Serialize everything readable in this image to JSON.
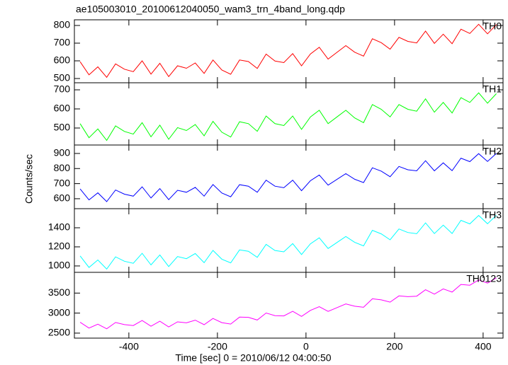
{
  "chart_data": [
    {
      "type": "line",
      "title": "ae105003010_20100612040050_wam3_trn_4band_long.qdp",
      "x": [
        -510,
        -490,
        -470,
        -450,
        -430,
        -410,
        -390,
        -370,
        -350,
        -330,
        -310,
        -290,
        -270,
        -250,
        -230,
        -210,
        -190,
        -170,
        -150,
        -130,
        -110,
        -90,
        -70,
        -50,
        -30,
        -10,
        10,
        30,
        50,
        70,
        90,
        110,
        130,
        150,
        170,
        190,
        210,
        230,
        250,
        270,
        290,
        310,
        330,
        350,
        370,
        390,
        410,
        430
      ],
      "series": [
        {
          "name": "TH0",
          "color": "#ff0000",
          "values": [
            595,
            521,
            566,
            507,
            583,
            553,
            539,
            600,
            525,
            586,
            511,
            572,
            558,
            588,
            529,
            605,
            548,
            524,
            605,
            596,
            557,
            638,
            599,
            590,
            641,
            572,
            639,
            677,
            610,
            648,
            686,
            649,
            627,
            725,
            703,
            666,
            733,
            710,
            701,
            768,
            699,
            751,
            697,
            779,
            755,
            807,
            753,
            805
          ]
        }
      ],
      "xlim": [
        -523,
        445
      ],
      "xticks": [
        -400,
        -200,
        0,
        200,
        400
      ],
      "ylim": [
        476,
        832
      ],
      "yticks": [
        500,
        600,
        700,
        800
      ]
    },
    {
      "type": "line",
      "x": [
        -510,
        -490,
        -470,
        -450,
        -430,
        -410,
        -390,
        -370,
        -350,
        -330,
        -310,
        -290,
        -270,
        -250,
        -230,
        -210,
        -190,
        -170,
        -150,
        -130,
        -110,
        -90,
        -70,
        -50,
        -30,
        -10,
        10,
        30,
        50,
        70,
        90,
        110,
        130,
        150,
        170,
        190,
        210,
        230,
        250,
        270,
        290,
        310,
        330,
        350,
        370,
        390,
        410,
        430
      ],
      "series": [
        {
          "name": "TH1",
          "color": "#00ff00",
          "values": [
            523,
            449,
            495,
            435,
            511,
            482,
            468,
            528,
            454,
            515,
            441,
            502,
            487,
            518,
            459,
            535,
            478,
            453,
            533,
            523,
            483,
            563,
            523,
            513,
            563,
            493,
            558,
            593,
            523,
            558,
            593,
            553,
            528,
            623,
            598,
            558,
            623,
            598,
            588,
            653,
            583,
            634,
            579,
            659,
            634,
            684,
            630,
            680
          ]
        }
      ],
      "xlim": [
        -523,
        445
      ],
      "xticks": [
        -400,
        -200,
        0,
        200,
        400
      ],
      "ylim": [
        411,
        737
      ],
      "yticks": [
        500,
        600,
        700
      ]
    },
    {
      "type": "line",
      "ylabel": "Counts/sec",
      "x": [
        -510,
        -490,
        -470,
        -450,
        -430,
        -410,
        -390,
        -370,
        -350,
        -330,
        -310,
        -290,
        -270,
        -250,
        -230,
        -210,
        -190,
        -170,
        -150,
        -130,
        -110,
        -90,
        -70,
        -50,
        -30,
        -10,
        10,
        30,
        50,
        70,
        90,
        110,
        130,
        150,
        170,
        190,
        210,
        230,
        250,
        270,
        290,
        310,
        330,
        350,
        370,
        390,
        410,
        430
      ],
      "series": [
        {
          "name": "TH2",
          "color": "#0000ff",
          "values": [
            665,
            592,
            639,
            581,
            658,
            630,
            617,
            679,
            605,
            667,
            594,
            656,
            643,
            675,
            617,
            694,
            638,
            613,
            693,
            683,
            643,
            723,
            683,
            673,
            723,
            653,
            719,
            757,
            690,
            728,
            766,
            729,
            707,
            805,
            783,
            746,
            814,
            792,
            785,
            852,
            785,
            838,
            786,
            869,
            846,
            899,
            847,
            900
          ]
        }
      ],
      "xlim": [
        -523,
        445
      ],
      "xticks": [
        -400,
        -200,
        0,
        200,
        400
      ],
      "ylim": [
        534,
        956
      ],
      "yticks": [
        600,
        700,
        800,
        900
      ]
    },
    {
      "type": "line",
      "x": [
        -510,
        -490,
        -470,
        -450,
        -430,
        -410,
        -390,
        -370,
        -350,
        -330,
        -310,
        -290,
        -270,
        -250,
        -230,
        -210,
        -190,
        -170,
        -150,
        -130,
        -110,
        -90,
        -70,
        -50,
        -30,
        -10,
        10,
        30,
        50,
        70,
        90,
        110,
        130,
        150,
        170,
        190,
        210,
        230,
        250,
        270,
        290,
        310,
        330,
        350,
        370,
        390,
        410,
        430
      ],
      "series": [
        {
          "name": "TH3",
          "color": "#00ffff",
          "values": [
            1105,
            984,
            1063,
            967,
            1095,
            1049,
            1028,
            1132,
            1011,
            1115,
            994,
            1098,
            1076,
            1130,
            1034,
            1163,
            1071,
            1032,
            1168,
            1154,
            1090,
            1226,
            1162,
            1148,
            1234,
            1120,
            1232,
            1295,
            1183,
            1246,
            1309,
            1247,
            1210,
            1373,
            1336,
            1274,
            1387,
            1350,
            1338,
            1451,
            1339,
            1427,
            1340,
            1478,
            1441,
            1529,
            1442,
            1530
          ]
        }
      ],
      "xlim": [
        -523,
        445
      ],
      "xticks": [
        -400,
        -200,
        0,
        200,
        400
      ],
      "ylim": [
        933,
        1600
      ],
      "yticks": [
        1000,
        1200,
        1400
      ]
    },
    {
      "type": "line",
      "xlabel": "Time [sec] 0 = 2010/06/12 04:00:50",
      "x": [
        -510,
        -490,
        -470,
        -450,
        -430,
        -410,
        -390,
        -370,
        -350,
        -330,
        -310,
        -290,
        -270,
        -250,
        -230,
        -210,
        -190,
        -170,
        -150,
        -130,
        -110,
        -90,
        -70,
        -50,
        -30,
        -10,
        10,
        30,
        50,
        70,
        90,
        110,
        130,
        150,
        170,
        190,
        210,
        230,
        250,
        270,
        290,
        310,
        330,
        350,
        370,
        390,
        410,
        430
      ],
      "series": [
        {
          "name": "TH0123",
          "color": "#ff00ff",
          "values": [
            2770,
            2626,
            2723,
            2609,
            2766,
            2712,
            2689,
            2815,
            2672,
            2798,
            2655,
            2781,
            2757,
            2824,
            2710,
            2867,
            2762,
            2726,
            2900,
            2894,
            2828,
            3002,
            2936,
            2930,
            3044,
            2918,
            3067,
            3160,
            3043,
            3136,
            3229,
            3172,
            3145,
            3358,
            3331,
            3274,
            3430,
            3411,
            3422,
            3583,
            3474,
            3604,
            3525,
            3716,
            3697,
            3828,
            3749,
            3880
          ]
        }
      ],
      "xlim": [
        -523,
        445
      ],
      "xticks": [
        -400,
        -200,
        0,
        200,
        400
      ],
      "ylim": [
        2375,
        4018
      ],
      "yticks": [
        2500,
        3000,
        3500
      ]
    }
  ]
}
